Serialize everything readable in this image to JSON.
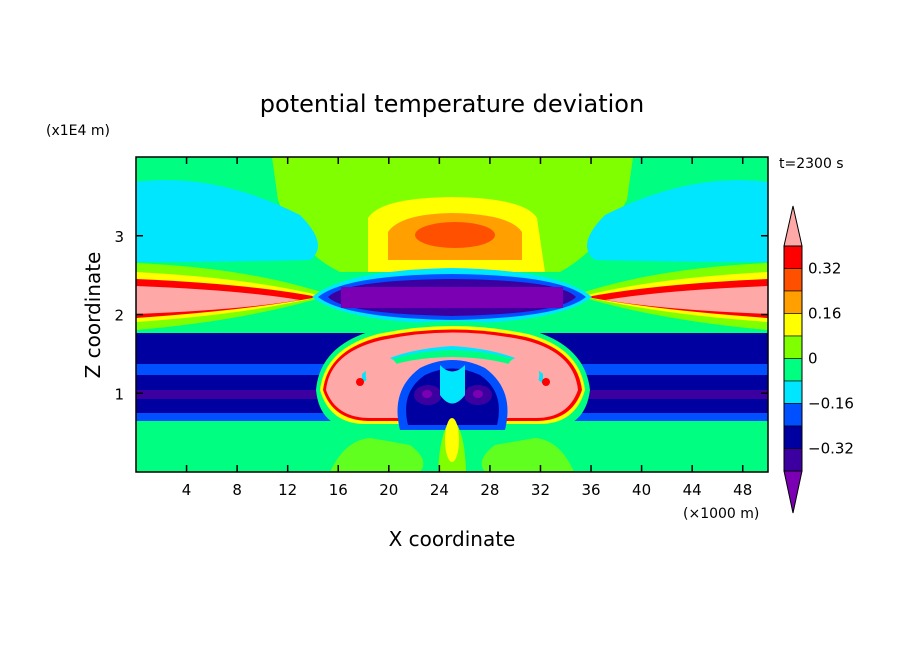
{
  "chart_data": {
    "type": "heatmap",
    "title": "potential temperature deviation",
    "xlabel": "X coordinate",
    "ylabel": "Z coordinate",
    "x_unit": "(×1000 m)",
    "y_unit": "(x1E4 m)",
    "time_label": "t=2300 s",
    "xlim": [
      0,
      50
    ],
    "ylim": [
      0,
      4
    ],
    "x_ticks": [
      "4",
      "8",
      "12",
      "16",
      "20",
      "24",
      "28",
      "32",
      "36",
      "40",
      "44",
      "48"
    ],
    "y_ticks": [
      "1",
      "2",
      "3"
    ],
    "colorbar": {
      "levels": [
        -0.48,
        -0.4,
        -0.32,
        -0.24,
        -0.16,
        -0.08,
        0,
        0.08,
        0.16,
        0.24,
        0.32,
        0.4
      ],
      "tick_labels": [
        "0.32",
        "0.16",
        "0",
        "−0.16",
        "−0.32"
      ],
      "colors": [
        "#7b00b4",
        "#3c00a0",
        "#0000a0",
        "#0050ff",
        "#00e6ff",
        "#00ff80",
        "#80ff00",
        "#ffff00",
        "#ffa000",
        "#ff5000",
        "#ff0000",
        "#ffa8a8"
      ]
    }
  },
  "colors": {
    "background_field": "#00ff80",
    "upper_field": "#80ff00",
    "cap_yellow": "#ffff00",
    "cap_orange": "#ffa000",
    "cap_red": "#ff5000",
    "band_dark_blue": "#0000a0",
    "band_blue": "#0050ff",
    "band_indigo": "#3c00a0",
    "band_purple": "#7b00b4",
    "cyan": "#00e6ff",
    "pink": "#ffa8a8",
    "red": "#ff0000"
  }
}
